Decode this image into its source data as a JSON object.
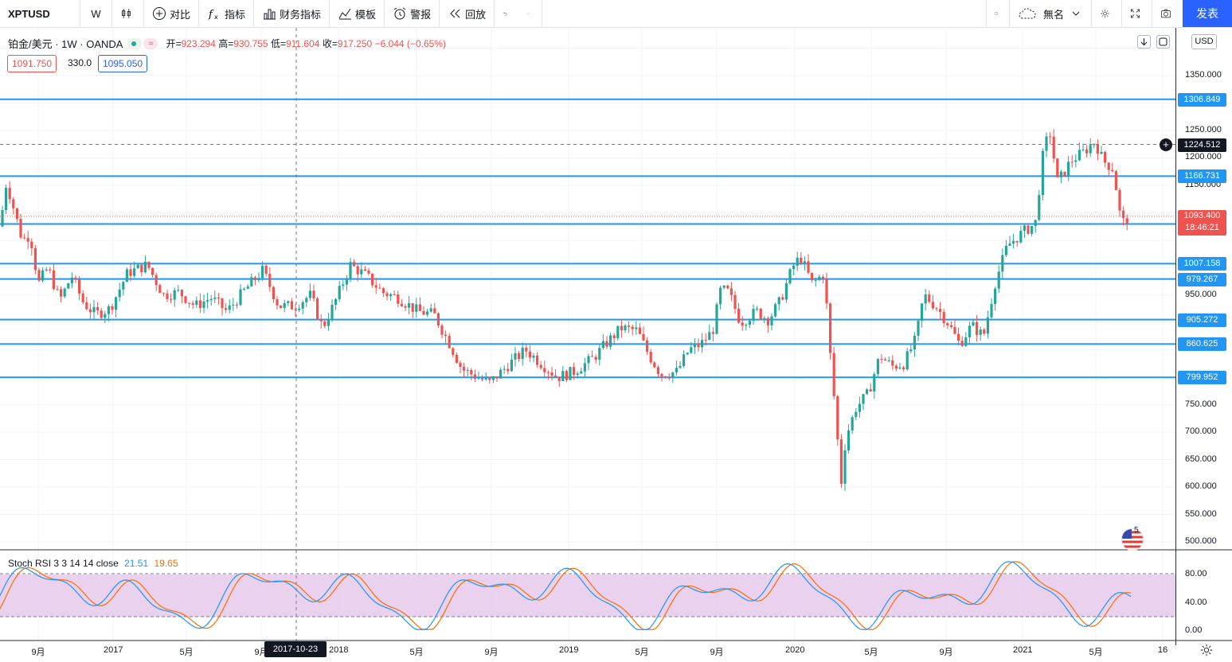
{
  "toolbar": {
    "symbol": "XPTUSD",
    "interval": "W",
    "compare": "对比",
    "indicators": "指标",
    "financials": "财务指标",
    "templates": "模板",
    "alert": "警报",
    "replay": "回放",
    "layout_name": "無名",
    "publish": "发表"
  },
  "legend": {
    "title": "铂金/美元 · 1W · OANDA",
    "open_label": "开=",
    "open": "923.294",
    "high_label": "高=",
    "high": "930.755",
    "low_label": "低=",
    "low": "911.604",
    "close_label": "收=",
    "close": "917.250",
    "change": "−6.044 (−0.65%)",
    "sell_price": "1091.750",
    "spread": "330.0",
    "buy_price": "1095.050"
  },
  "currency": "USD",
  "price_axis": [
    {
      "label": "1350.000",
      "price": 1350
    },
    {
      "label": "1250.000",
      "price": 1250
    },
    {
      "label": "1200.000",
      "price": 1200
    },
    {
      "label": "1150.000",
      "price": 1150
    },
    {
      "label": "950.000",
      "price": 950
    },
    {
      "label": "750.000",
      "price": 750
    },
    {
      "label": "700.000",
      "price": 700
    },
    {
      "label": "650.000",
      "price": 650
    },
    {
      "label": "600.000",
      "price": 600
    },
    {
      "label": "550.000",
      "price": 550
    },
    {
      "label": "500.000",
      "price": 500
    }
  ],
  "horizontal_lines": [
    {
      "label": "1306.849",
      "price": 1306.849
    },
    {
      "label": "1166.731",
      "price": 1166.731
    },
    {
      "label": "1079.508",
      "price": 1079.508
    },
    {
      "label": "1007.158",
      "price": 1007.158
    },
    {
      "label": "979.267",
      "price": 979.267
    },
    {
      "label": "905.272",
      "price": 905.272
    },
    {
      "label": "860.625",
      "price": 860.625
    },
    {
      "label": "799.952",
      "price": 799.952
    }
  ],
  "crosshair_price": {
    "label": "1224.512",
    "price": 1224.512
  },
  "last_price": {
    "label": "1093.400",
    "countdown": "18:46:21",
    "price": 1093.4
  },
  "time_axis": [
    {
      "label": "9月",
      "x": 48
    },
    {
      "label": "2017",
      "x": 142
    },
    {
      "label": "5月",
      "x": 234
    },
    {
      "label": "9月",
      "x": 328
    },
    {
      "label": "2018",
      "x": 425
    },
    {
      "label": "5月",
      "x": 523
    },
    {
      "label": "9月",
      "x": 617
    },
    {
      "label": "2019",
      "x": 714
    },
    {
      "label": "5月",
      "x": 806
    },
    {
      "label": "9月",
      "x": 900
    },
    {
      "label": "2020",
      "x": 998
    },
    {
      "label": "5月",
      "x": 1094
    },
    {
      "label": "9月",
      "x": 1188
    },
    {
      "label": "2021",
      "x": 1284
    },
    {
      "label": "5月",
      "x": 1376
    },
    {
      "label": "16",
      "x": 1460
    }
  ],
  "crosshair_date": "2017-10-23",
  "rsi": {
    "title": "Stoch RSI 3 3 14 14 close",
    "k": "21.51",
    "d": "19.65",
    "axis": [
      {
        "label": "80.00",
        "value": 80
      },
      {
        "label": "40.00",
        "value": 40
      },
      {
        "label": "0.00",
        "value": 0
      }
    ]
  },
  "colors": {
    "up": "#26a69a",
    "down": "#ef5350",
    "hline": "#2196f3",
    "k_line": "#2196f3",
    "d_line": "#ff6d00",
    "rsi_band": "#e1bee7"
  },
  "chart_data": {
    "type": "candlestick",
    "title": "铂金/美元 · 1W · OANDA",
    "ylim": [
      490,
      1450
    ],
    "anchors": [
      [
        0,
        1075
      ],
      [
        8,
        1155
      ],
      [
        14,
        1125
      ],
      [
        28,
        1050
      ],
      [
        38,
        1060
      ],
      [
        48,
        970
      ],
      [
        60,
        1000
      ],
      [
        75,
        940
      ],
      [
        90,
        985
      ],
      [
        105,
        935
      ],
      [
        120,
        915
      ],
      [
        138,
        925
      ],
      [
        160,
        990
      ],
      [
        185,
        1005
      ],
      [
        205,
        950
      ],
      [
        225,
        955
      ],
      [
        245,
        930
      ],
      [
        265,
        945
      ],
      [
        285,
        920
      ],
      [
        305,
        955
      ],
      [
        330,
        995
      ],
      [
        350,
        930
      ],
      [
        370,
        930
      ],
      [
        390,
        950
      ],
      [
        405,
        890
      ],
      [
        420,
        935
      ],
      [
        440,
        1005
      ],
      [
        460,
        985
      ],
      [
        480,
        955
      ],
      [
        500,
        945
      ],
      [
        525,
        920
      ],
      [
        545,
        915
      ],
      [
        565,
        860
      ],
      [
        580,
        815
      ],
      [
        600,
        800
      ],
      [
        615,
        790
      ],
      [
        640,
        825
      ],
      [
        660,
        850
      ],
      [
        680,
        825
      ],
      [
        700,
        800
      ],
      [
        720,
        810
      ],
      [
        745,
        835
      ],
      [
        760,
        860
      ],
      [
        780,
        890
      ],
      [
        800,
        885
      ],
      [
        815,
        840
      ],
      [
        830,
        805
      ],
      [
        850,
        810
      ],
      [
        865,
        850
      ],
      [
        880,
        860
      ],
      [
        895,
        885
      ],
      [
        905,
        960
      ],
      [
        915,
        955
      ],
      [
        930,
        900
      ],
      [
        950,
        920
      ],
      [
        965,
        905
      ],
      [
        980,
        940
      ],
      [
        995,
        1000
      ],
      [
        1005,
        1020
      ],
      [
        1020,
        970
      ],
      [
        1035,
        990
      ],
      [
        1042,
        850
      ],
      [
        1050,
        720
      ],
      [
        1056,
        605
      ],
      [
        1062,
        690
      ],
      [
        1075,
        745
      ],
      [
        1090,
        770
      ],
      [
        1105,
        840
      ],
      [
        1120,
        820
      ],
      [
        1135,
        825
      ],
      [
        1150,
        870
      ],
      [
        1160,
        950
      ],
      [
        1175,
        930
      ],
      [
        1190,
        900
      ],
      [
        1205,
        860
      ],
      [
        1220,
        895
      ],
      [
        1235,
        875
      ],
      [
        1250,
        975
      ],
      [
        1265,
        1040
      ],
      [
        1285,
        1065
      ],
      [
        1300,
        1080
      ],
      [
        1310,
        1210
      ],
      [
        1318,
        1250
      ],
      [
        1328,
        1155
      ],
      [
        1345,
        1195
      ],
      [
        1360,
        1210
      ],
      [
        1375,
        1230
      ],
      [
        1385,
        1195
      ],
      [
        1398,
        1180
      ],
      [
        1408,
        1080
      ],
      [
        1418,
        1093
      ]
    ]
  }
}
